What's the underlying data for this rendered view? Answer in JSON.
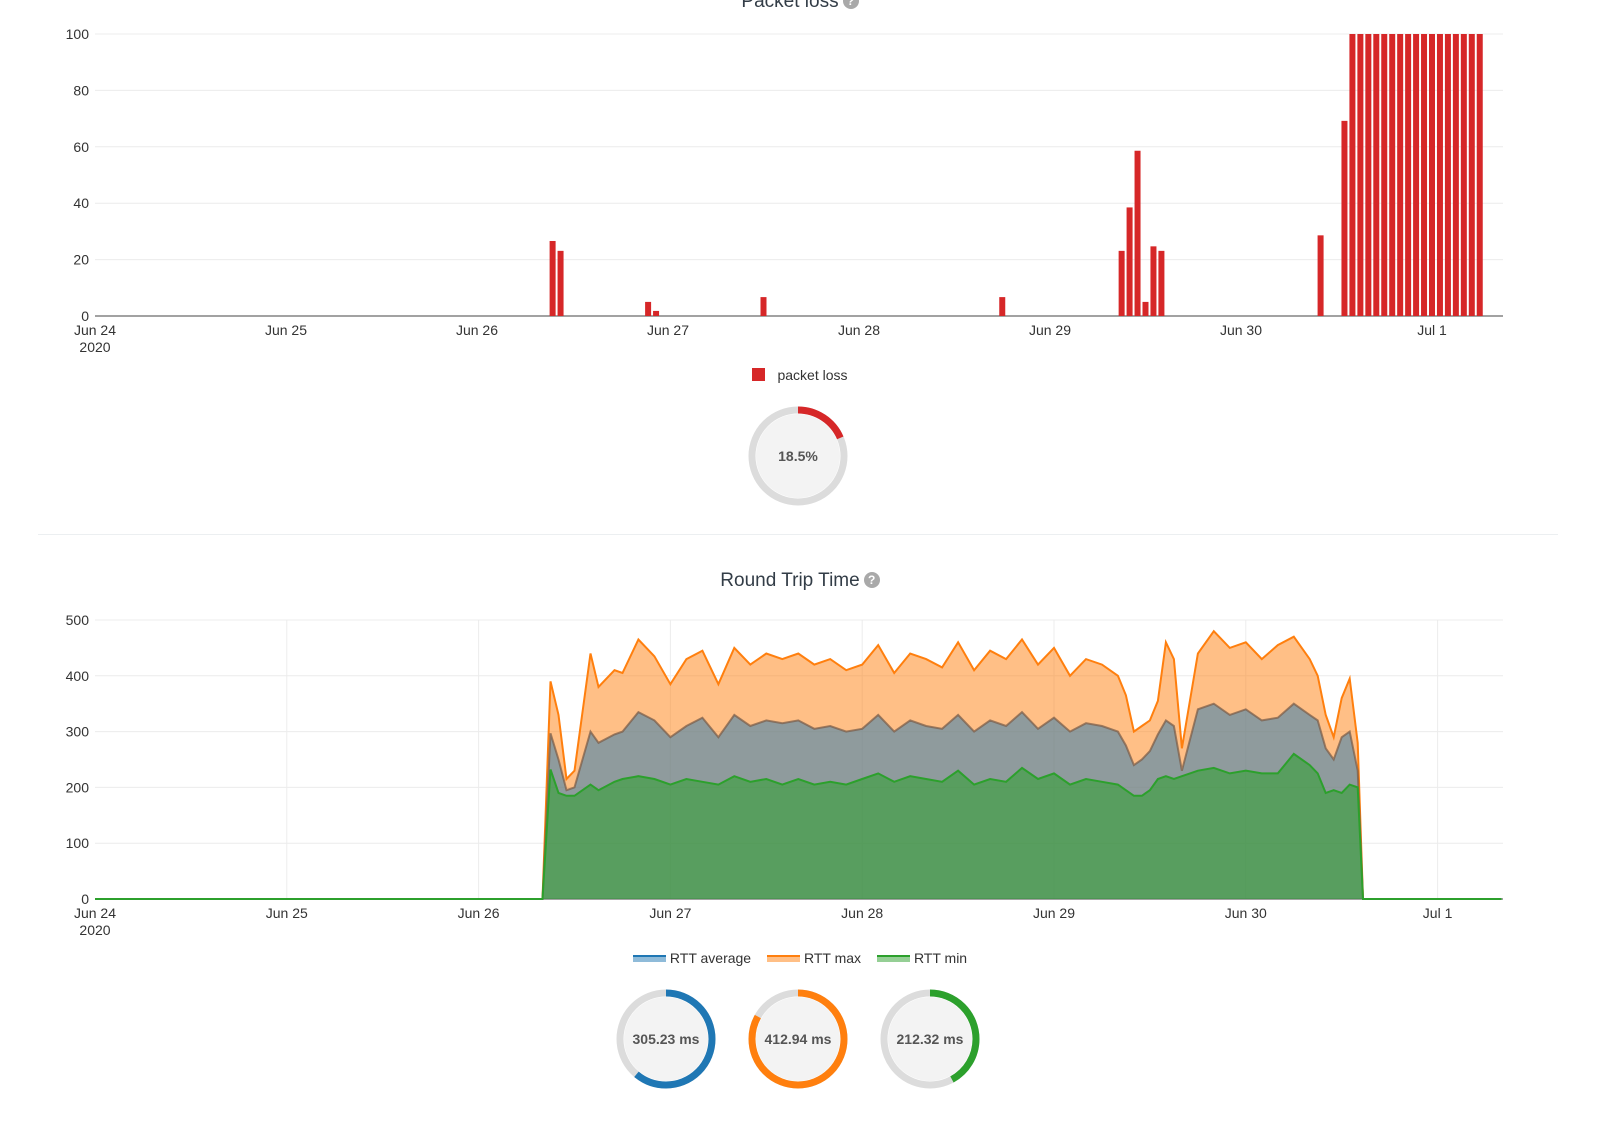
{
  "packet_loss": {
    "title": "Packet loss",
    "help_icon": "question-circle-icon",
    "legend": [
      {
        "label": "packet loss",
        "color": "#d62728"
      }
    ],
    "gauge": {
      "label": "18.5%",
      "fraction": 0.185,
      "color": "#d62728"
    }
  },
  "rtt": {
    "title": "Round Trip Time",
    "help_icon": "question-circle-icon",
    "legend": [
      {
        "label": "RTT average",
        "color": "#1f77b4"
      },
      {
        "label": "RTT max",
        "color": "#ff7f0e"
      },
      {
        "label": "RTT min",
        "color": "#2ca02c"
      }
    ],
    "gauges": [
      {
        "label": "305.23 ms",
        "fraction": 0.61,
        "color": "#1f77b4"
      },
      {
        "label": "412.94 ms",
        "fraction": 0.83,
        "color": "#ff7f0e"
      },
      {
        "label": "212.32 ms",
        "fraction": 0.42,
        "color": "#2ca02c"
      }
    ]
  },
  "chart_data": [
    {
      "type": "bar",
      "title": "Packet loss",
      "x_ticks": [
        "Jun 24\n2020",
        "Jun 25",
        "Jun 26",
        "Jun 27",
        "Jun 28",
        "Jun 29",
        "Jun 30",
        "Jul 1"
      ],
      "xlim": [
        "2020-06-24",
        "2020-07-01 07:00"
      ],
      "ylim": [
        0,
        100
      ],
      "y_ticks": [
        0,
        20,
        40,
        60,
        80,
        100
      ],
      "grid": true,
      "series": [
        {
          "name": "packet loss",
          "color": "#d62728",
          "x": [
            "2020-06-26 09:30",
            "2020-06-26 10:30",
            "2020-06-26 21:30",
            "2020-06-26 22:30",
            "2020-06-27 12:00",
            "2020-06-28 18:00",
            "2020-06-29 09:00",
            "2020-06-29 10:00",
            "2020-06-29 11:00",
            "2020-06-29 12:00",
            "2020-06-29 13:00",
            "2020-06-29 14:00",
            "2020-06-30 10:00",
            "2020-06-30 13:00",
            "2020-06-30 14:00",
            "2020-06-30 15:00",
            "2020-06-30 16:00",
            "2020-06-30 17:00",
            "2020-06-30 18:00",
            "2020-06-30 19:00",
            "2020-06-30 20:00",
            "2020-06-30 21:00",
            "2020-06-30 22:00",
            "2020-06-30 23:00",
            "2020-07-01 00:00",
            "2020-07-01 01:00",
            "2020-07-01 02:00",
            "2020-07-01 03:00",
            "2020-07-01 04:00",
            "2020-07-01 05:00",
            "2020-07-01 06:00"
          ],
          "values": [
            26.6,
            23.1,
            5.0,
            1.8,
            6.7,
            6.7,
            23.1,
            38.5,
            58.6,
            5.0,
            24.7,
            23.1,
            28.6,
            69.2,
            100,
            100,
            100,
            100,
            100,
            100,
            100,
            100,
            100,
            100,
            100,
            100,
            100,
            100,
            100,
            100,
            100
          ]
        }
      ]
    },
    {
      "type": "area",
      "title": "Round Trip Time",
      "x_ticks": [
        "Jun 24\n2020",
        "Jun 25",
        "Jun 26",
        "Jun 27",
        "Jun 28",
        "Jun 29",
        "Jun 30",
        "Jul 1"
      ],
      "xlim": [
        "2020-06-24",
        "2020-07-01 08:00"
      ],
      "ylim": [
        0,
        500
      ],
      "y_ticks": [
        0,
        100,
        200,
        300,
        400,
        500
      ],
      "grid": true,
      "x": [
        "2020-06-24 00:00",
        "2020-06-26 08:00",
        "2020-06-26 09:00",
        "2020-06-26 10:00",
        "2020-06-26 11:00",
        "2020-06-26 12:00",
        "2020-06-26 14:00",
        "2020-06-26 15:00",
        "2020-06-26 17:00",
        "2020-06-26 18:00",
        "2020-06-26 20:00",
        "2020-06-26 22:00",
        "2020-06-27 00:00",
        "2020-06-27 02:00",
        "2020-06-27 04:00",
        "2020-06-27 06:00",
        "2020-06-27 08:00",
        "2020-06-27 10:00",
        "2020-06-27 12:00",
        "2020-06-27 14:00",
        "2020-06-27 16:00",
        "2020-06-27 18:00",
        "2020-06-27 20:00",
        "2020-06-27 22:00",
        "2020-06-28 00:00",
        "2020-06-28 02:00",
        "2020-06-28 04:00",
        "2020-06-28 06:00",
        "2020-06-28 08:00",
        "2020-06-28 10:00",
        "2020-06-28 12:00",
        "2020-06-28 14:00",
        "2020-06-28 16:00",
        "2020-06-28 18:00",
        "2020-06-28 20:00",
        "2020-06-28 22:00",
        "2020-06-29 00:00",
        "2020-06-29 02:00",
        "2020-06-29 04:00",
        "2020-06-29 06:00",
        "2020-06-29 08:00",
        "2020-06-29 09:00",
        "2020-06-29 10:00",
        "2020-06-29 11:00",
        "2020-06-29 12:00",
        "2020-06-29 13:00",
        "2020-06-29 14:00",
        "2020-06-29 15:00",
        "2020-06-29 16:00",
        "2020-06-29 18:00",
        "2020-06-29 20:00",
        "2020-06-29 22:00",
        "2020-06-30 00:00",
        "2020-06-30 02:00",
        "2020-06-30 04:00",
        "2020-06-30 06:00",
        "2020-06-30 08:00",
        "2020-06-30 09:00",
        "2020-06-30 10:00",
        "2020-06-30 11:00",
        "2020-06-30 12:00",
        "2020-06-30 13:00",
        "2020-06-30 14:00",
        "2020-06-30 14:40",
        "2020-06-30 15:20",
        "2020-07-01 08:00"
      ],
      "series": [
        {
          "name": "RTT max",
          "color": "#ff7f0e",
          "values": [
            0,
            0,
            390,
            330,
            215,
            230,
            440,
            380,
            410,
            405,
            465,
            435,
            385,
            430,
            445,
            385,
            450,
            420,
            440,
            430,
            440,
            420,
            430,
            410,
            420,
            455,
            405,
            440,
            430,
            415,
            460,
            410,
            445,
            430,
            465,
            420,
            450,
            400,
            430,
            420,
            400,
            365,
            300,
            310,
            320,
            355,
            460,
            430,
            270,
            440,
            480,
            450,
            460,
            430,
            455,
            470,
            430,
            400,
            330,
            290,
            360,
            395,
            280,
            0,
            0,
            0
          ]
        },
        {
          "name": "RTT average",
          "color": "#1f77b4",
          "values": [
            0,
            0,
            297,
            250,
            195,
            200,
            300,
            280,
            295,
            300,
            335,
            320,
            290,
            310,
            325,
            290,
            330,
            310,
            320,
            315,
            320,
            305,
            310,
            300,
            305,
            330,
            300,
            320,
            310,
            305,
            330,
            300,
            320,
            310,
            335,
            305,
            325,
            300,
            315,
            310,
            300,
            275,
            240,
            250,
            265,
            295,
            320,
            310,
            230,
            340,
            350,
            330,
            340,
            320,
            325,
            350,
            330,
            320,
            270,
            250,
            290,
            300,
            230,
            0,
            0,
            0
          ]
        },
        {
          "name": "RTT min",
          "color": "#2ca02c",
          "values": [
            0,
            0,
            232,
            190,
            185,
            185,
            205,
            195,
            210,
            215,
            220,
            215,
            205,
            215,
            210,
            205,
            220,
            210,
            215,
            205,
            215,
            205,
            210,
            205,
            215,
            225,
            210,
            220,
            215,
            210,
            230,
            205,
            215,
            210,
            235,
            215,
            225,
            205,
            215,
            210,
            205,
            195,
            185,
            185,
            195,
            215,
            220,
            215,
            220,
            230,
            235,
            225,
            230,
            225,
            225,
            260,
            240,
            225,
            190,
            195,
            190,
            205,
            200,
            0,
            0,
            0
          ]
        }
      ]
    }
  ]
}
